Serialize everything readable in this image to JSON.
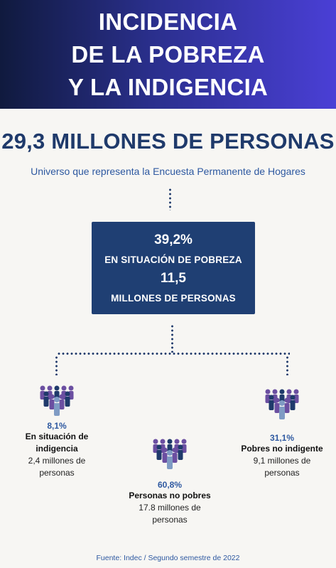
{
  "header": {
    "line1": "INCIDENCIA",
    "line2": "DE LA POBREZA",
    "line3": "Y LA INDIGENCIA",
    "gradient_start": "#101a3e",
    "gradient_end": "#4a3fd6"
  },
  "headline": "29,3 MILLONES DE PERSONAS",
  "subline": "Universo que representa la Encuesta Permanente de Hogares",
  "summary_box": {
    "percent": "39,2%",
    "percent_label": "EN SITUACIÓN DE POBREZA",
    "count": "11,5",
    "count_label": "MILLONES DE PERSONAS",
    "color": "#1f3f73"
  },
  "groups": {
    "indigencia": {
      "percent": "8,1%",
      "label_line1": "En situación de",
      "label_line2": "indigencia",
      "count_line1": "2,4 millones de",
      "count_line2": "personas",
      "icon": "people-group-icon"
    },
    "no_pobres": {
      "percent": "60,8%",
      "label": "Personas no pobres",
      "count_line1": "17.8 millones de",
      "count_line2": "personas",
      "icon": "people-group-icon"
    },
    "pobres_no_indigentes": {
      "percent": "31,1%",
      "label": "Pobres no indigente",
      "count_line1": "9,1 millones de",
      "count_line2": "personas",
      "icon": "people-group-icon"
    }
  },
  "colors": {
    "accent_dark": "#1f3a6b",
    "accent_blue": "#2d58a0",
    "people_purple": "#6b4fa1",
    "people_light": "#7f9bc4"
  },
  "source": "Fuente: Indec / Segundo semestre de 2022"
}
